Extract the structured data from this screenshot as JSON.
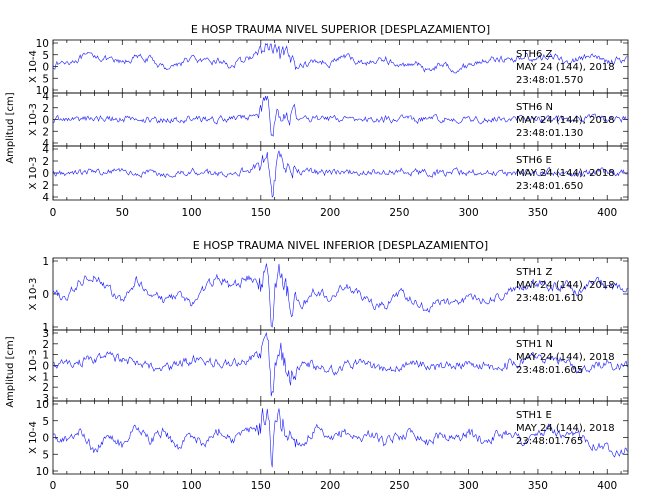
{
  "chart_data": [
    {
      "type": "line",
      "title": "E HOSP TRAUMA NIVEL SUPERIOR [DESPLAZAMIENTO]",
      "ylabel": "Amplitud [cm]",
      "xlim": [
        0,
        415
      ],
      "xticks": [
        "0",
        "50",
        "100",
        "150",
        "200",
        "250",
        "300",
        "350",
        "400"
      ],
      "series": [
        {
          "name": "STH6 Z",
          "scale_label": "X 10-4",
          "yticks": [
            "10",
            "5",
            "0",
            "5",
            "10"
          ],
          "ylim": [
            -10,
            10
          ],
          "labels": [
            "STH6   Z",
            "MAY 24 (144), 2018",
            "23:48:01.570"
          ],
          "points": [
            [
              0,
              0.5
            ],
            [
              10,
              2.0
            ],
            [
              20,
              3.5
            ],
            [
              30,
              5.0
            ],
            [
              40,
              2.5
            ],
            [
              50,
              1.5
            ],
            [
              60,
              4.0
            ],
            [
              70,
              3.0
            ],
            [
              80,
              -0.5
            ],
            [
              90,
              1.0
            ],
            [
              100,
              3.5
            ],
            [
              110,
              1.5
            ],
            [
              120,
              2.5
            ],
            [
              130,
              0.0
            ],
            [
              140,
              3.5
            ],
            [
              150,
              6.0
            ],
            [
              155,
              8.5
            ],
            [
              160,
              4.5
            ],
            [
              170,
              2.5
            ],
            [
              180,
              0.5
            ],
            [
              190,
              2.5
            ],
            [
              200,
              1.5
            ],
            [
              210,
              4.5
            ],
            [
              220,
              2.0
            ],
            [
              230,
              1.5
            ],
            [
              240,
              3.5
            ],
            [
              250,
              -0.5
            ],
            [
              260,
              2.0
            ],
            [
              270,
              -1.5
            ],
            [
              280,
              1.0
            ],
            [
              290,
              -1.0
            ],
            [
              300,
              0.5
            ],
            [
              310,
              2.5
            ],
            [
              320,
              3.5
            ],
            [
              330,
              2.5
            ],
            [
              340,
              4.5
            ],
            [
              350,
              3.0
            ],
            [
              360,
              5.0
            ],
            [
              370,
              1.5
            ],
            [
              380,
              3.5
            ],
            [
              390,
              4.0
            ],
            [
              400,
              2.0
            ],
            [
              410,
              3.0
            ]
          ]
        },
        {
          "name": "STH6 N",
          "scale_label": "X 10-3",
          "yticks": [
            "4",
            "2",
            "0",
            "2",
            "4"
          ],
          "ylim": [
            -4,
            4
          ],
          "labels": [
            "STH6   N",
            "MAY 24 (144), 2018",
            "23:48:01.130"
          ],
          "points": [
            [
              0,
              0.0
            ],
            [
              20,
              0.1
            ],
            [
              40,
              0.2
            ],
            [
              60,
              0.0
            ],
            [
              80,
              -0.1
            ],
            [
              100,
              0.1
            ],
            [
              120,
              0.0
            ],
            [
              140,
              0.3
            ],
            [
              150,
              1.5
            ],
            [
              155,
              3.5
            ],
            [
              158,
              -3.0
            ],
            [
              162,
              2.0
            ],
            [
              170,
              0.6
            ],
            [
              180,
              0.2
            ],
            [
              200,
              0.1
            ],
            [
              220,
              0.0
            ],
            [
              240,
              0.1
            ],
            [
              260,
              0.0
            ],
            [
              280,
              0.1
            ],
            [
              300,
              0.0
            ],
            [
              320,
              0.2
            ],
            [
              340,
              0.1
            ],
            [
              360,
              0.0
            ],
            [
              380,
              0.1
            ],
            [
              400,
              0.2
            ],
            [
              410,
              0.1
            ]
          ]
        },
        {
          "name": "STH6 E",
          "scale_label": "X 10-3",
          "yticks": [
            "4",
            "2",
            "0",
            "2",
            "4"
          ],
          "ylim": [
            -4,
            4
          ],
          "labels": [
            "STH6   E",
            "MAY 24 (144), 2018",
            "23:48:01.650"
          ],
          "points": [
            [
              0,
              0.0
            ],
            [
              20,
              0.2
            ],
            [
              40,
              0.3
            ],
            [
              60,
              0.1
            ],
            [
              80,
              -0.1
            ],
            [
              100,
              0.2
            ],
            [
              120,
              0.0
            ],
            [
              140,
              0.4
            ],
            [
              150,
              1.5
            ],
            [
              155,
              3.0
            ],
            [
              158,
              -3.5
            ],
            [
              162,
              2.0
            ],
            [
              170,
              0.6
            ],
            [
              180,
              0.2
            ],
            [
              200,
              0.1
            ],
            [
              220,
              0.2
            ],
            [
              240,
              0.0
            ],
            [
              250,
              0.5
            ],
            [
              260,
              0.1
            ],
            [
              280,
              0.0
            ],
            [
              300,
              0.1
            ],
            [
              320,
              0.0
            ],
            [
              340,
              0.2
            ],
            [
              360,
              0.1
            ],
            [
              380,
              0.0
            ],
            [
              400,
              0.1
            ],
            [
              410,
              0.0
            ]
          ]
        }
      ]
    },
    {
      "type": "line",
      "title": "E HOSP TRAUMA NIVEL INFERIOR [DESPLAZAMIENTO]",
      "ylabel": "Amplitud [cm]",
      "xlim": [
        0,
        415
      ],
      "xticks": [
        "0",
        "50",
        "100",
        "150",
        "200",
        "250",
        "300",
        "350",
        "400"
      ],
      "series": [
        {
          "name": "STH1 Z",
          "scale_label": "X 10-3",
          "yticks": [
            "1",
            "0",
            "1"
          ],
          "ylim": [
            -1.5,
            1.5
          ],
          "labels": [
            "STH1   Z",
            "MAY 24 (144), 2018",
            "23:48:01.610"
          ],
          "points": [
            [
              0,
              0.0
            ],
            [
              10,
              -0.2
            ],
            [
              20,
              0.6
            ],
            [
              30,
              0.9
            ],
            [
              40,
              0.2
            ],
            [
              50,
              -0.4
            ],
            [
              60,
              0.6
            ],
            [
              70,
              0.1
            ],
            [
              80,
              -0.3
            ],
            [
              90,
              0.0
            ],
            [
              100,
              -0.5
            ],
            [
              110,
              0.3
            ],
            [
              120,
              0.8
            ],
            [
              130,
              0.2
            ],
            [
              140,
              0.8
            ],
            [
              150,
              0.4
            ],
            [
              155,
              1.3
            ],
            [
              158,
              -1.2
            ],
            [
              162,
              1.2
            ],
            [
              170,
              -0.1
            ],
            [
              180,
              -0.5
            ],
            [
              190,
              0.2
            ],
            [
              200,
              -0.3
            ],
            [
              210,
              0.4
            ],
            [
              220,
              0.0
            ],
            [
              230,
              -0.4
            ],
            [
              240,
              -0.6
            ],
            [
              250,
              0.1
            ],
            [
              260,
              -0.4
            ],
            [
              270,
              -0.7
            ],
            [
              280,
              -0.3
            ],
            [
              290,
              -0.5
            ],
            [
              300,
              -0.1
            ],
            [
              310,
              -0.3
            ],
            [
              320,
              -0.2
            ],
            [
              330,
              0.1
            ],
            [
              340,
              0.3
            ],
            [
              350,
              0.5
            ],
            [
              360,
              0.3
            ],
            [
              370,
              0.4
            ],
            [
              380,
              0.1
            ],
            [
              390,
              0.6
            ],
            [
              400,
              0.4
            ],
            [
              410,
              0.2
            ]
          ]
        },
        {
          "name": "STH1 N",
          "scale_label": "X 10-3",
          "yticks": [
            "3",
            "2",
            "1",
            "0",
            "1",
            "2",
            "3"
          ],
          "ylim": [
            -3,
            3
          ],
          "labels": [
            "STH1   N",
            "MAY 24 (144), 2018",
            "23:48:01.605"
          ],
          "points": [
            [
              0,
              0.0
            ],
            [
              20,
              0.3
            ],
            [
              40,
              0.8
            ],
            [
              60,
              0.2
            ],
            [
              80,
              -0.4
            ],
            [
              100,
              0.5
            ],
            [
              120,
              0.1
            ],
            [
              140,
              0.4
            ],
            [
              150,
              1.2
            ],
            [
              155,
              2.8
            ],
            [
              158,
              -2.8
            ],
            [
              162,
              1.8
            ],
            [
              170,
              -0.8
            ],
            [
              180,
              0.3
            ],
            [
              200,
              -0.5
            ],
            [
              220,
              0.2
            ],
            [
              240,
              -0.3
            ],
            [
              260,
              0.1
            ],
            [
              280,
              -0.2
            ],
            [
              300,
              0.3
            ],
            [
              320,
              -0.1
            ],
            [
              340,
              0.5
            ],
            [
              360,
              0.9
            ],
            [
              380,
              -0.3
            ],
            [
              400,
              0.2
            ],
            [
              410,
              -0.1
            ]
          ]
        },
        {
          "name": "STH1 E",
          "scale_label": "X 10-4",
          "yticks": [
            "10",
            "5",
            "0",
            "5",
            "10"
          ],
          "ylim": [
            -10,
            10
          ],
          "labels": [
            "STH1   E",
            "MAY 24 (144), 2018",
            "23:48:01.765"
          ],
          "points": [
            [
              0,
              0.0
            ],
            [
              10,
              -1.0
            ],
            [
              20,
              3.0
            ],
            [
              30,
              -4.0
            ],
            [
              40,
              1.5
            ],
            [
              50,
              -2.5
            ],
            [
              60,
              3.5
            ],
            [
              70,
              -1.0
            ],
            [
              80,
              2.0
            ],
            [
              90,
              -3.0
            ],
            [
              100,
              1.0
            ],
            [
              110,
              -2.0
            ],
            [
              120,
              2.5
            ],
            [
              130,
              -0.5
            ],
            [
              140,
              1.5
            ],
            [
              150,
              4.0
            ],
            [
              155,
              8.0
            ],
            [
              158,
              -6.0
            ],
            [
              162,
              6.5
            ],
            [
              170,
              1.0
            ],
            [
              180,
              -2.0
            ],
            [
              190,
              2.5
            ],
            [
              200,
              -1.5
            ],
            [
              210,
              2.0
            ],
            [
              220,
              -0.5
            ],
            [
              230,
              1.5
            ],
            [
              240,
              -2.0
            ],
            [
              250,
              0.5
            ],
            [
              260,
              2.0
            ],
            [
              270,
              -1.5
            ],
            [
              280,
              1.0
            ],
            [
              290,
              -0.5
            ],
            [
              300,
              1.5
            ],
            [
              310,
              -1.0
            ],
            [
              320,
              0.5
            ],
            [
              330,
              2.0
            ],
            [
              340,
              -1.5
            ],
            [
              350,
              1.0
            ],
            [
              360,
              2.5
            ],
            [
              370,
              -0.5
            ],
            [
              380,
              1.0
            ],
            [
              390,
              -2.0
            ],
            [
              400,
              -3.0
            ],
            [
              410,
              -4.0
            ]
          ]
        }
      ]
    }
  ]
}
